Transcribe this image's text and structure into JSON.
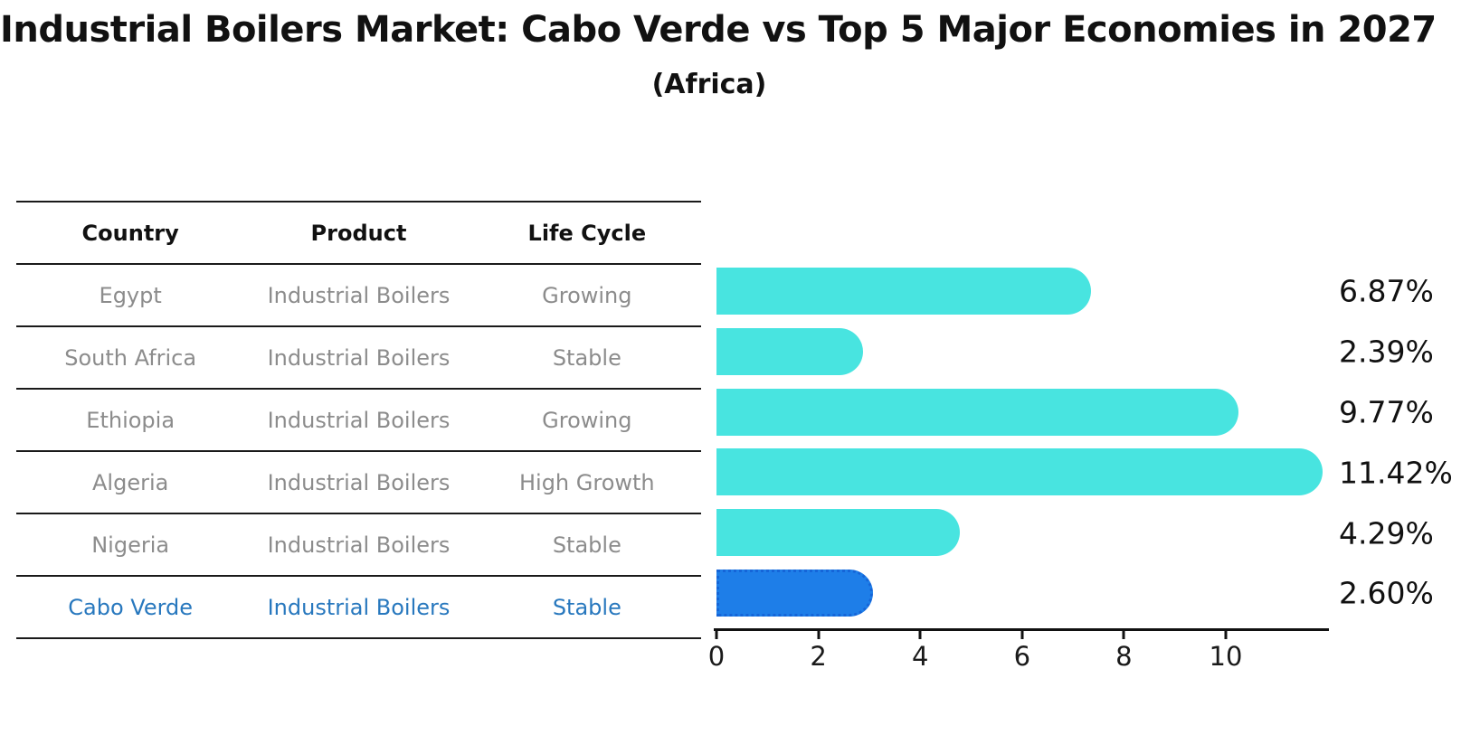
{
  "title": "Industrial Boilers Market: Cabo Verde vs Top 5 Major Economies in 2027",
  "subtitle": "(Africa)",
  "table": {
    "headers": [
      "Country",
      "Product",
      "Life Cycle"
    ],
    "rows": [
      {
        "country": "Egypt",
        "product": "Industrial Boilers",
        "life_cycle": "Growing",
        "highlight": false
      },
      {
        "country": "South Africa",
        "product": "Industrial Boilers",
        "life_cycle": "Stable",
        "highlight": false
      },
      {
        "country": "Ethiopia",
        "product": "Industrial Boilers",
        "life_cycle": "Growing",
        "highlight": false
      },
      {
        "country": "Algeria",
        "product": "Industrial Boilers",
        "life_cycle": "High Growth",
        "highlight": false
      },
      {
        "country": "Nigeria",
        "product": "Industrial Boilers",
        "life_cycle": "Stable",
        "highlight": false
      },
      {
        "country": "Cabo Verde",
        "product": "Industrial Boilers",
        "life_cycle": "Stable",
        "highlight": true
      }
    ]
  },
  "chart_data": {
    "type": "bar",
    "orientation": "horizontal",
    "title": "Industrial Boilers Market: Cabo Verde vs Top 5 Major Economies in 2027",
    "subtitle": "(Africa)",
    "categories": [
      "Egypt",
      "South Africa",
      "Ethiopia",
      "Algeria",
      "Nigeria",
      "Cabo Verde"
    ],
    "values": [
      6.87,
      2.39,
      9.77,
      11.42,
      4.29,
      2.6
    ],
    "value_labels": [
      "6.87%",
      "2.39%",
      "9.77%",
      "11.42%",
      "4.29%",
      "2.60%"
    ],
    "highlight_index": 5,
    "x_ticks": [
      0,
      2,
      4,
      6,
      8,
      10
    ],
    "xlim": [
      0,
      11.99
    ],
    "bar_cap_units": 0.48,
    "grid": false,
    "legend": false,
    "colors": {
      "bar": "#48e4e0",
      "highlight_bar": "#1e7ee8",
      "highlight_border": "#1565d8",
      "highlight_text": "#2878be",
      "table_text": "#8c8c8c",
      "axis": "#111111"
    }
  }
}
